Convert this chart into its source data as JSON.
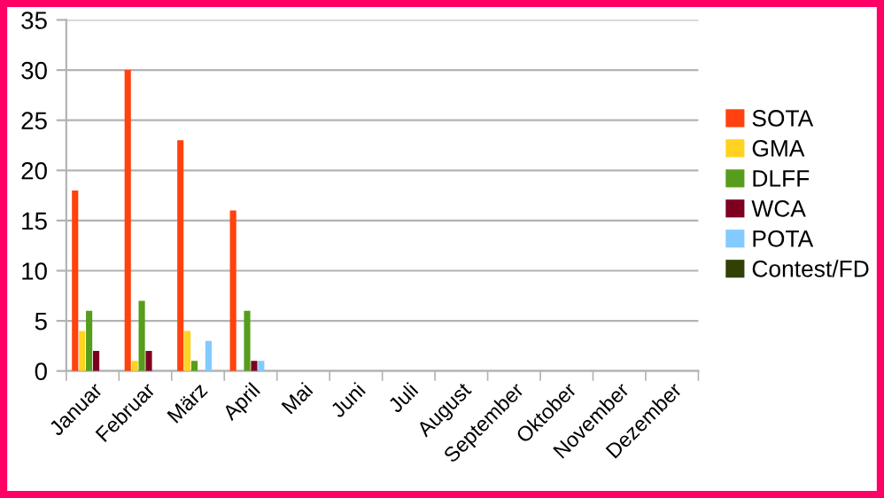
{
  "chart_data": {
    "type": "bar",
    "categories": [
      "Januar",
      "Februar",
      "März",
      "April",
      "Mai",
      "Juni",
      "Juli",
      "August",
      "September",
      "Oktober",
      "November",
      "Dezember"
    ],
    "series": [
      {
        "name": "SOTA",
        "color": "#ff420e",
        "values": [
          18,
          30,
          23,
          16,
          null,
          null,
          null,
          null,
          null,
          null,
          null,
          null
        ]
      },
      {
        "name": "GMA",
        "color": "#ffd320",
        "values": [
          4,
          1,
          4,
          0,
          null,
          null,
          null,
          null,
          null,
          null,
          null,
          null
        ]
      },
      {
        "name": "DLFF",
        "color": "#579d1c",
        "values": [
          6,
          7,
          1,
          6,
          null,
          null,
          null,
          null,
          null,
          null,
          null,
          null
        ]
      },
      {
        "name": "WCA",
        "color": "#7e0021",
        "values": [
          2,
          2,
          0,
          1,
          null,
          null,
          null,
          null,
          null,
          null,
          null,
          null
        ]
      },
      {
        "name": "POTA",
        "color": "#83caff",
        "values": [
          0,
          0,
          3,
          1,
          null,
          null,
          null,
          null,
          null,
          null,
          null,
          null
        ]
      },
      {
        "name": "Contest/FD",
        "color": "#314004",
        "values": [
          0,
          0,
          0,
          0,
          null,
          null,
          null,
          null,
          null,
          null,
          null,
          null
        ]
      }
    ],
    "ylim": [
      0,
      35
    ],
    "yticks": [
      0,
      5,
      10,
      15,
      20,
      25,
      30,
      35
    ],
    "grid": "y",
    "legend": "right"
  }
}
